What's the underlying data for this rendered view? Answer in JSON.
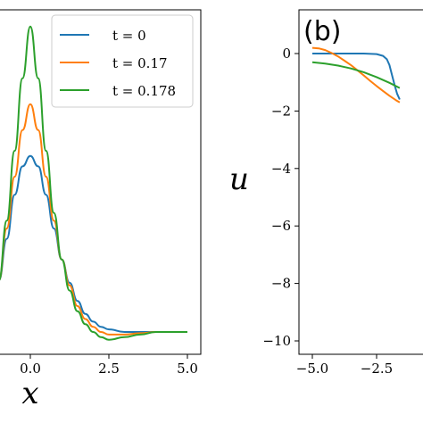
{
  "chart_data": [
    {
      "type": "line",
      "panel": "a",
      "xlabel": "x",
      "ylabel": "",
      "xlim": [
        -1.0,
        5.4
      ],
      "ylim": [
        0,
        1
      ],
      "xticks": [
        "0.0",
        "2.5",
        "5.0"
      ],
      "xtick_values": [
        0.0,
        2.5,
        5.0
      ],
      "legend": {
        "placement": "top-right"
      },
      "series": [
        {
          "name": "t = 0",
          "color": "#1f77b4",
          "x": [
            -1.0,
            -0.75,
            -0.5,
            -0.25,
            0.0,
            0.25,
            0.5,
            0.75,
            1.0,
            1.25,
            1.5,
            1.75,
            2.0,
            2.25,
            2.5,
            3.0,
            3.5,
            4.0,
            4.5,
            5.0
          ],
          "y": [
            0.2,
            0.36,
            0.53,
            0.64,
            0.68,
            0.64,
            0.53,
            0.4,
            0.28,
            0.19,
            0.12,
            0.07,
            0.04,
            0.02,
            0.01,
            0.0,
            0.0,
            0.0,
            0.0,
            0.0
          ]
        },
        {
          "name": "t = 0.17",
          "color": "#ff7f0e",
          "x": [
            -1.0,
            -0.75,
            -0.5,
            -0.25,
            0.0,
            0.25,
            0.5,
            0.75,
            1.0,
            1.25,
            1.5,
            1.75,
            2.0,
            2.25,
            2.5,
            3.0,
            3.5,
            4.0,
            4.5,
            5.0
          ],
          "y": [
            0.2,
            0.4,
            0.6,
            0.78,
            0.88,
            0.78,
            0.6,
            0.43,
            0.28,
            0.18,
            0.1,
            0.05,
            0.02,
            0.0,
            -0.01,
            -0.01,
            -0.005,
            0.0,
            0.0,
            0.0
          ]
        },
        {
          "name": "t = 0.178",
          "color": "#2ca02c",
          "x": [
            -1.0,
            -0.75,
            -0.5,
            -0.25,
            0.0,
            0.25,
            0.5,
            0.75,
            1.0,
            1.25,
            1.5,
            1.75,
            2.0,
            2.25,
            2.5,
            3.0,
            3.5,
            4.0,
            4.5,
            5.0
          ],
          "y": [
            0.2,
            0.43,
            0.7,
            0.98,
            1.18,
            0.98,
            0.7,
            0.46,
            0.28,
            0.16,
            0.08,
            0.03,
            0.0,
            -0.02,
            -0.03,
            -0.02,
            -0.01,
            0.0,
            0.0,
            0.0
          ]
        }
      ]
    },
    {
      "type": "line",
      "panel": "b",
      "panel_tag": "(b)",
      "ylabel": "u",
      "xlim": [
        -5.5,
        -1.6
      ],
      "ylim": [
        -10.3,
        1.5
      ],
      "xticks": [
        "−5.0",
        "−2.5"
      ],
      "xtick_values": [
        -5.0,
        -2.5
      ],
      "yticks": [
        "0",
        "−2",
        "−4",
        "−6",
        "−8",
        "−10"
      ],
      "ytick_values": [
        0,
        -2,
        -4,
        -6,
        -8,
        -10
      ],
      "series": [
        {
          "name": "t = 0",
          "color": "#1f77b4",
          "x": [
            -5.0,
            -4.5,
            -4.0,
            -3.5,
            -3.0,
            -2.5,
            -2.25,
            -2.1,
            -2.0,
            -1.9,
            -1.8,
            -1.7,
            -1.6
          ],
          "y": [
            0.0,
            0.0,
            0.0,
            0.0,
            0.0,
            -0.02,
            -0.08,
            -0.2,
            -0.4,
            -0.75,
            -1.1,
            -1.4,
            -1.6
          ]
        },
        {
          "name": "t = 0.17",
          "color": "#ff7f0e",
          "x": [
            -5.0,
            -4.75,
            -4.5,
            -4.25,
            -4.0,
            -3.75,
            -3.5,
            -3.25,
            -3.0,
            -2.75,
            -2.5,
            -2.25,
            -2.0,
            -1.75,
            -1.6
          ],
          "y": [
            0.2,
            0.18,
            0.12,
            0.02,
            -0.1,
            -0.25,
            -0.4,
            -0.58,
            -0.76,
            -0.95,
            -1.13,
            -1.3,
            -1.47,
            -1.62,
            -1.7
          ]
        },
        {
          "name": "t = 0.178",
          "color": "#2ca02c",
          "x": [
            -5.0,
            -4.5,
            -4.0,
            -3.5,
            -3.0,
            -2.5,
            -2.0,
            -1.6
          ],
          "y": [
            -0.3,
            -0.35,
            -0.42,
            -0.52,
            -0.65,
            -0.82,
            -1.02,
            -1.2
          ]
        }
      ]
    }
  ]
}
